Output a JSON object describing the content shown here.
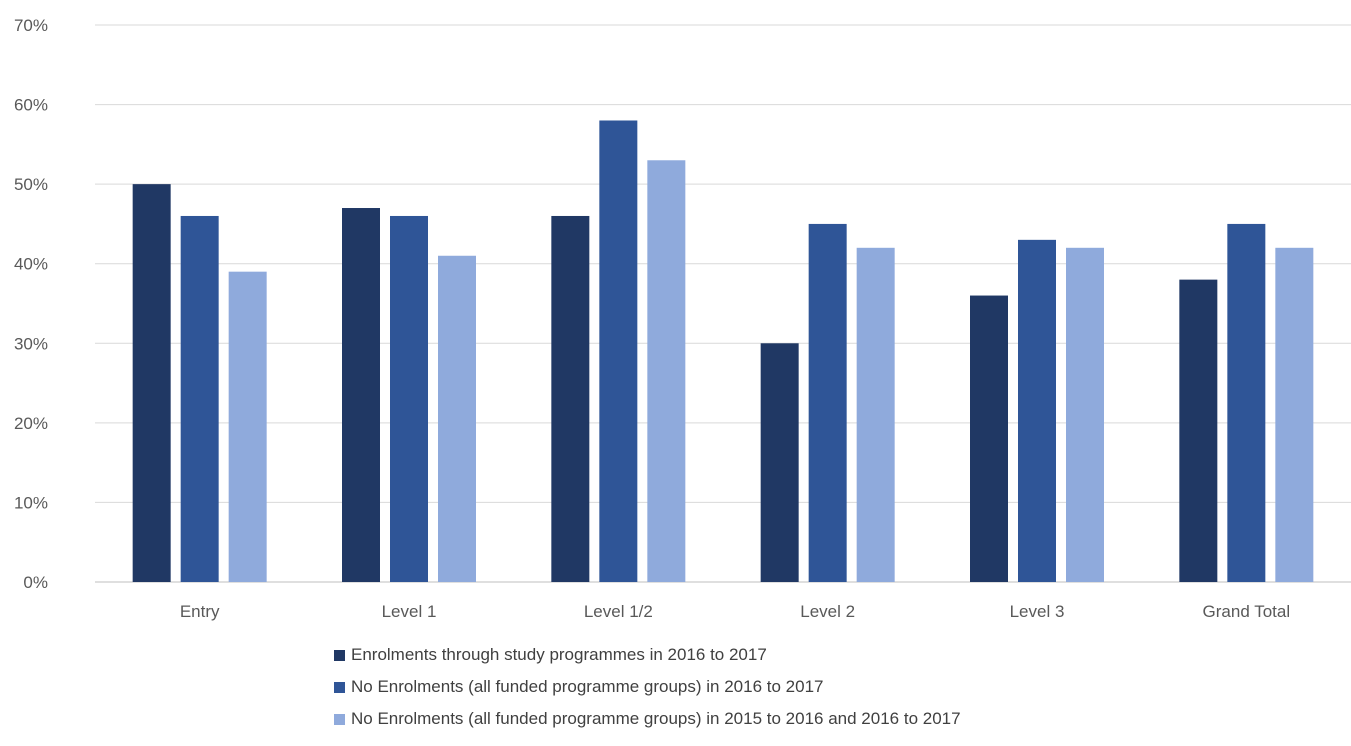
{
  "chart_data": {
    "type": "bar",
    "title": "",
    "xlabel": "",
    "ylabel": "",
    "categories": [
      "Entry",
      "Level 1",
      "Level 1/2",
      "Level 2",
      "Level 3",
      "Grand Total"
    ],
    "series": [
      {
        "name": "Enrolments through study programmes in 2016 to 2017",
        "color": "#203864",
        "values": [
          50,
          47,
          46,
          30,
          36,
          38
        ]
      },
      {
        "name": "No Enrolments (all funded programme groups) in 2016 to 2017",
        "color": "#2F5597",
        "values": [
          46,
          46,
          58,
          45,
          43,
          45
        ]
      },
      {
        "name": "No Enrolments (all funded programme groups) in 2015 to 2016 and 2016 to 2017",
        "color": "#8FAADC",
        "values": [
          39,
          41,
          53,
          42,
          42,
          42
        ]
      }
    ],
    "ylim": [
      0,
      70
    ],
    "yticks": [
      "0%",
      "10%",
      "20%",
      "30%",
      "40%",
      "50%",
      "60%",
      "70%"
    ],
    "grid": true,
    "legend_position": "bottom"
  }
}
